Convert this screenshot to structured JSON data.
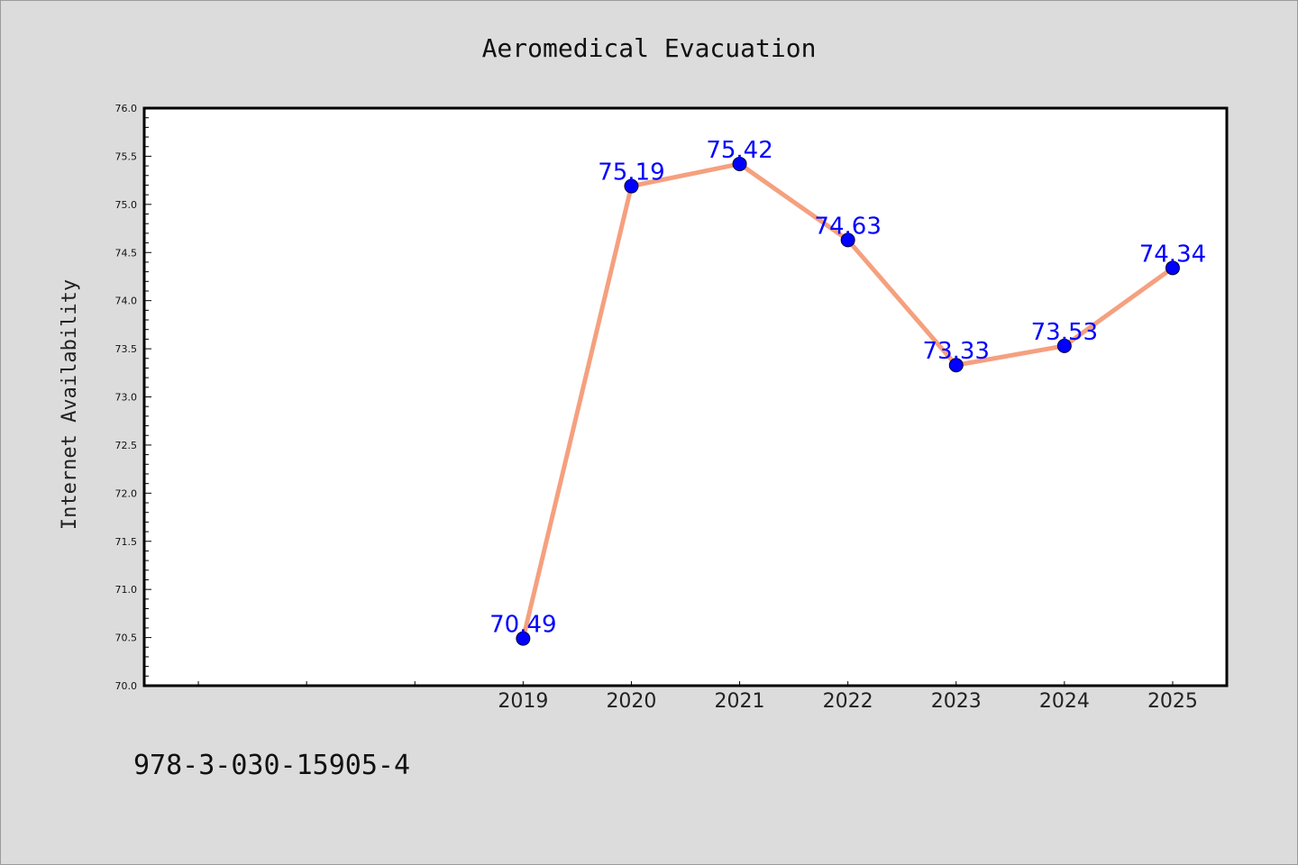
{
  "footer": {
    "id_text": "978-3-030-15905-4"
  },
  "colors": {
    "line": "#f5a07f",
    "marker": "#0000ff",
    "label": "#0000ff",
    "background": "#dcdcdc",
    "plot": "#ffffff"
  },
  "chart_data": {
    "type": "line",
    "title": "Aeromedical Evacuation",
    "xlabel": "",
    "ylabel": "Internet Availability",
    "x": [
      "2019",
      "2020",
      "2021",
      "2022",
      "2023",
      "2024",
      "2025"
    ],
    "series": [
      {
        "values": [
          70.49,
          75.19,
          75.42,
          74.63,
          73.33,
          73.53,
          74.34
        ]
      }
    ],
    "data_labels": [
      "70.49",
      "75.19",
      "75.42",
      "74.63",
      "73.33",
      "73.53",
      "74.34"
    ],
    "ylim": [
      70.0,
      76.0
    ],
    "yticks": [
      "70.0",
      "70.5",
      "71.0",
      "71.5",
      "72.0",
      "72.5",
      "73.0",
      "73.5",
      "74.0",
      "74.5",
      "75.0",
      "75.5",
      "76.0"
    ],
    "xlim": [
      2015.5,
      2025.5
    ],
    "grid": false,
    "legend": "none"
  }
}
